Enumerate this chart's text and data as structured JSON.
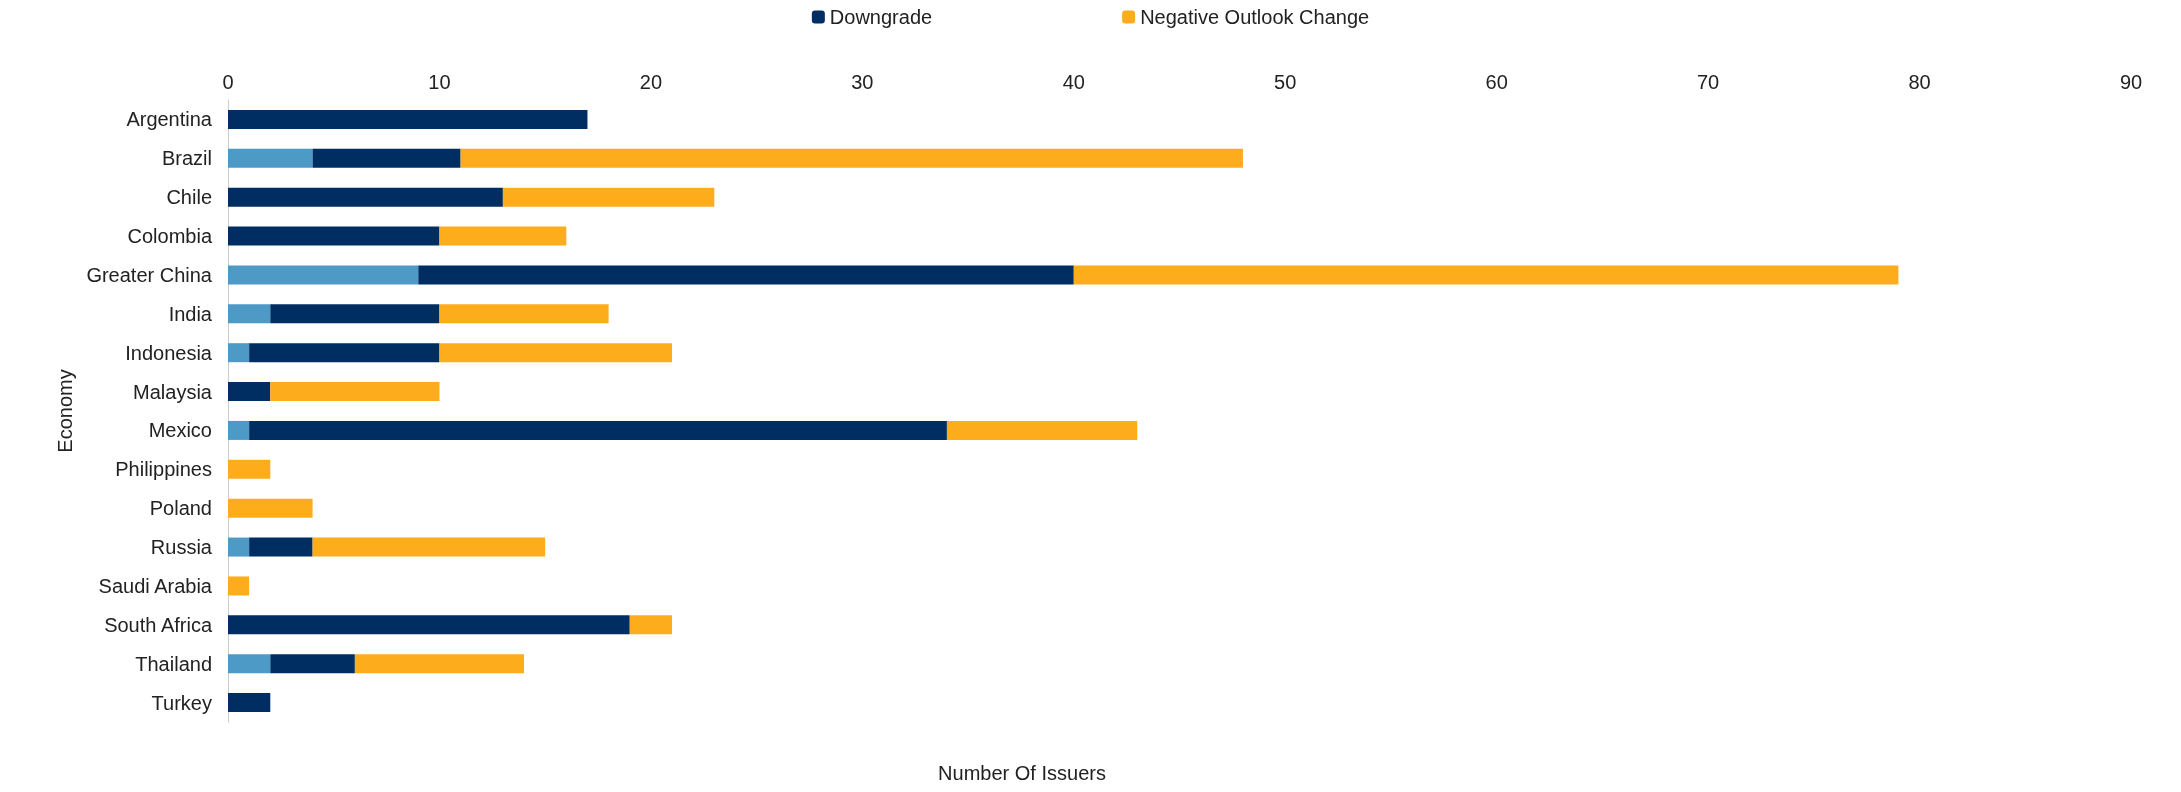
{
  "chart_data": {
    "type": "bar",
    "orientation": "horizontal",
    "stacked": true,
    "xlabel": "Number Of Issuers",
    "ylabel": "Economy",
    "categories": [
      "Argentina",
      "Brazil",
      "Chile",
      "Colombia",
      "Greater China",
      "India",
      "Indonesia",
      "Malaysia",
      "Mexico",
      "Philippines",
      "Poland",
      "Russia",
      "Saudi Arabia",
      "South Africa",
      "Thailand",
      "Turkey"
    ],
    "series": [
      {
        "color": "#4e9ac7",
        "values": [
          0,
          4,
          0,
          0,
          9,
          2,
          1,
          0,
          1,
          0,
          0,
          1,
          0,
          0,
          2,
          0
        ]
      },
      {
        "name": "Downgrade",
        "color": "#002d62",
        "values": [
          17,
          7,
          13,
          10,
          31,
          8,
          9,
          2,
          33,
          0,
          0,
          3,
          0,
          19,
          4,
          2
        ]
      },
      {
        "name": "Negative Outlook Change",
        "color": "#fdac1c",
        "values": [
          0,
          37,
          10,
          6,
          39,
          8,
          11,
          8,
          9,
          2,
          4,
          11,
          1,
          2,
          8,
          0
        ]
      }
    ],
    "xlim": [
      0,
      90
    ],
    "xticks": [
      0,
      10,
      20,
      30,
      40,
      50,
      60,
      70,
      80,
      90
    ],
    "grid": false,
    "legend": "top"
  }
}
